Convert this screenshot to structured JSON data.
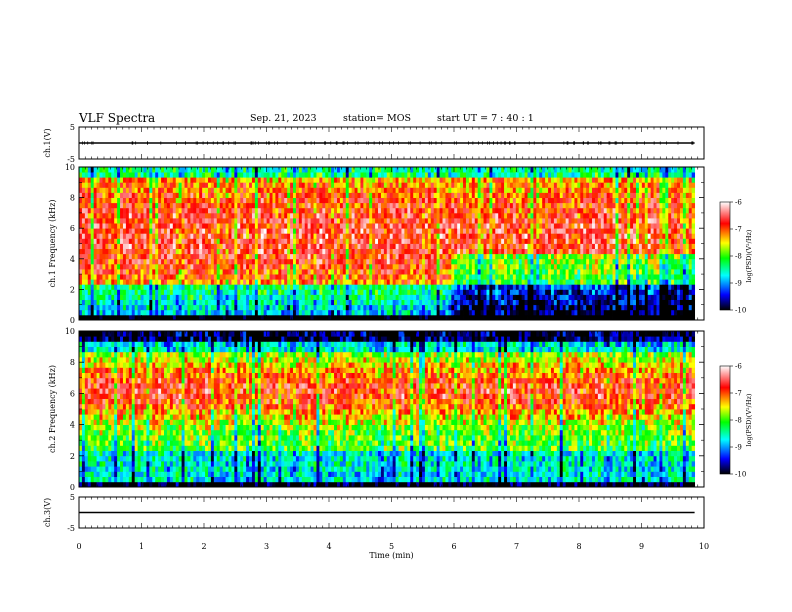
{
  "header": {
    "title": "VLF Spectra",
    "date": "Sep. 21, 2023",
    "station": "station= MOS",
    "start_ut": "start  UT  =    7 : 40 : 1"
  },
  "chart_data": [
    {
      "type": "line",
      "panel": "ch1-waveform",
      "ylabel": "ch.1(V)",
      "ylim": [
        -5,
        5
      ],
      "yticks": [
        "5",
        "-5"
      ],
      "series": [
        {
          "x": [
            0,
            9.85
          ],
          "y": [
            0,
            0
          ]
        }
      ]
    },
    {
      "type": "heatmap",
      "panel": "ch1-spectrogram",
      "ylabel": "ch.1 Frequency (kHz)",
      "xlim": [
        0,
        10
      ],
      "ylim": [
        0,
        10
      ],
      "yticks": [
        "0",
        "2",
        "4",
        "6",
        "8",
        "10"
      ],
      "colorbar": {
        "label": "log(PSD)(V²/Hz)",
        "range": [
          -10,
          -6
        ],
        "ticks": [
          "-6",
          "-7",
          "-8",
          "-9",
          "-10"
        ]
      }
    },
    {
      "type": "heatmap",
      "panel": "ch2-spectrogram",
      "ylabel": "ch.2 Frequency (kHz)",
      "xlim": [
        0,
        10
      ],
      "ylim": [
        0,
        10
      ],
      "yticks": [
        "0",
        "2",
        "4",
        "6",
        "8",
        "10"
      ],
      "colorbar": {
        "label": "log(PSD)(V²/Hz)",
        "range": [
          -10,
          -6
        ],
        "ticks": [
          "-6",
          "-7",
          "-8",
          "-9",
          "-10"
        ]
      }
    },
    {
      "type": "line",
      "panel": "ch3-waveform",
      "ylabel": "ch.3(V)",
      "ylim": [
        -5,
        5
      ],
      "yticks": [
        "5",
        "-5"
      ],
      "xlabel": "Time (min)",
      "xlim": [
        0,
        10
      ],
      "xticks": [
        "0",
        "1",
        "2",
        "3",
        "4",
        "5",
        "6",
        "7",
        "8",
        "9",
        "10"
      ],
      "series": [
        {
          "x": [
            0,
            9.85
          ],
          "y": [
            0,
            0
          ]
        }
      ]
    }
  ],
  "colors": {
    "scale": [
      "#000000",
      "#0000ff",
      "#00ffff",
      "#00ff00",
      "#ffff00",
      "#ff0000",
      "#ffffff"
    ]
  }
}
